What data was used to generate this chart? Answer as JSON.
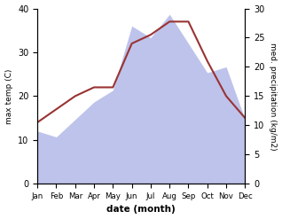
{
  "months": [
    "Jan",
    "Feb",
    "Mar",
    "Apr",
    "May",
    "Jun",
    "Jul",
    "Aug",
    "Sep",
    "Oct",
    "Nov",
    "Dec"
  ],
  "temperature": [
    14,
    17,
    20,
    22,
    22,
    32,
    34,
    37,
    37,
    28,
    20,
    15
  ],
  "precipitation": [
    9,
    8,
    11,
    14,
    16,
    27,
    25,
    29,
    24,
    19,
    20,
    11
  ],
  "temp_color": "#993333",
  "precip_fill_color": "#b3b9e8",
  "precip_fill_alpha": 0.85,
  "temp_ylim": [
    0,
    40
  ],
  "precip_ylim": [
    0,
    30
  ],
  "xlabel": "date (month)",
  "ylabel_left": "max temp (C)",
  "ylabel_right": "med. precipitation (kg/m2)",
  "bg_color": "#ffffff"
}
